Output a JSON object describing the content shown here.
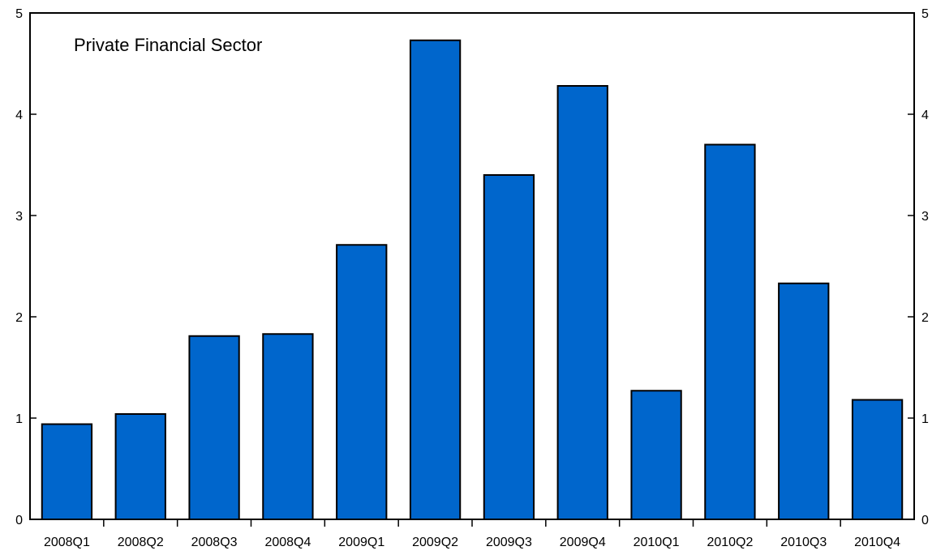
{
  "chart_data": {
    "type": "bar",
    "title": "Private Financial Sector",
    "xlabel": "",
    "ylabel": "",
    "categories": [
      "2008Q1",
      "2008Q2",
      "2008Q3",
      "2008Q4",
      "2009Q1",
      "2009Q2",
      "2009Q3",
      "2009Q4",
      "2010Q1",
      "2010Q2",
      "2010Q3",
      "2010Q4"
    ],
    "values": [
      0.94,
      1.04,
      1.81,
      1.83,
      2.71,
      4.73,
      3.4,
      4.28,
      1.27,
      3.7,
      2.33,
      1.18
    ],
    "ylim": [
      0,
      5
    ],
    "yticks": [
      "0",
      "1",
      "2",
      "3",
      "4",
      "5"
    ],
    "right_axis_ticks": [
      "0",
      "1",
      "2",
      "3",
      "4",
      "5"
    ],
    "bar_color": "#0066CC",
    "bar_edge_color": "#000000",
    "grid": false,
    "legend": "none"
  }
}
